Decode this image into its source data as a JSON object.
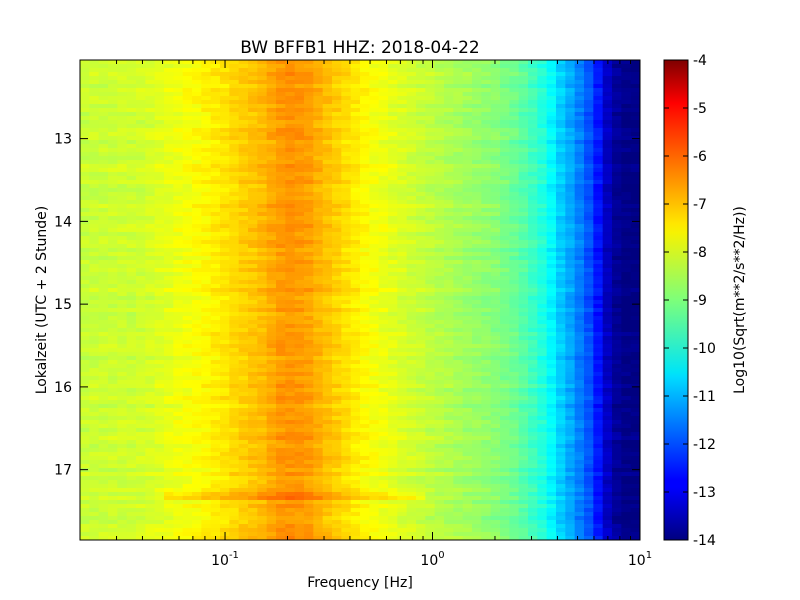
{
  "chart_data": {
    "type": "heatmap",
    "title": "BW BFFB1 HHZ: 2018-04-22",
    "xlabel": "Frequency [Hz]",
    "ylabel": "Lokalzeit (UTC + 2 Stunde)",
    "colorbar_label": "Log10(Sqrt(m**2/s**2/Hz))",
    "x_scale": "log",
    "xlim": [
      0.02,
      10
    ],
    "ylim": [
      17.85,
      12.05
    ],
    "x_ticks": [
      {
        "value": 0.1,
        "base": "10",
        "exp": "-1"
      },
      {
        "value": 1,
        "base": "10",
        "exp": "0"
      },
      {
        "value": 10,
        "base": "10",
        "exp": "1"
      }
    ],
    "y_ticks": [
      {
        "value": 13,
        "label": "13"
      },
      {
        "value": 14,
        "label": "14"
      },
      {
        "value": 15,
        "label": "15"
      },
      {
        "value": 16,
        "label": "16"
      },
      {
        "value": 17,
        "label": "17"
      }
    ],
    "colorbar_range": [
      -14,
      -4
    ],
    "colorbar_ticks": [
      "-4",
      "-5",
      "-6",
      "-7",
      "-8",
      "-9",
      "-10",
      "-11",
      "-12",
      "-13",
      "-14"
    ],
    "colormap": "jet",
    "spectrum_profile": {
      "frequency_hz": [
        0.02,
        0.04,
        0.06,
        0.08,
        0.1,
        0.12,
        0.15,
        0.18,
        0.2,
        0.25,
        0.3,
        0.4,
        0.5,
        0.7,
        1.0,
        1.5,
        2.0,
        2.5,
        3.0,
        3.5,
        4.0,
        5.0,
        6.0,
        7.0,
        8.0,
        10.0
      ],
      "log10_psd": [
        -8.3,
        -8.2,
        -7.9,
        -7.7,
        -7.5,
        -7.3,
        -7.1,
        -6.8,
        -6.7,
        -6.8,
        -7.1,
        -7.5,
        -7.8,
        -8.1,
        -8.4,
        -8.7,
        -8.9,
        -9.2,
        -9.6,
        -10.0,
        -10.6,
        -11.4,
        -12.2,
        -13.4,
        -13.9,
        -14.0
      ]
    }
  }
}
